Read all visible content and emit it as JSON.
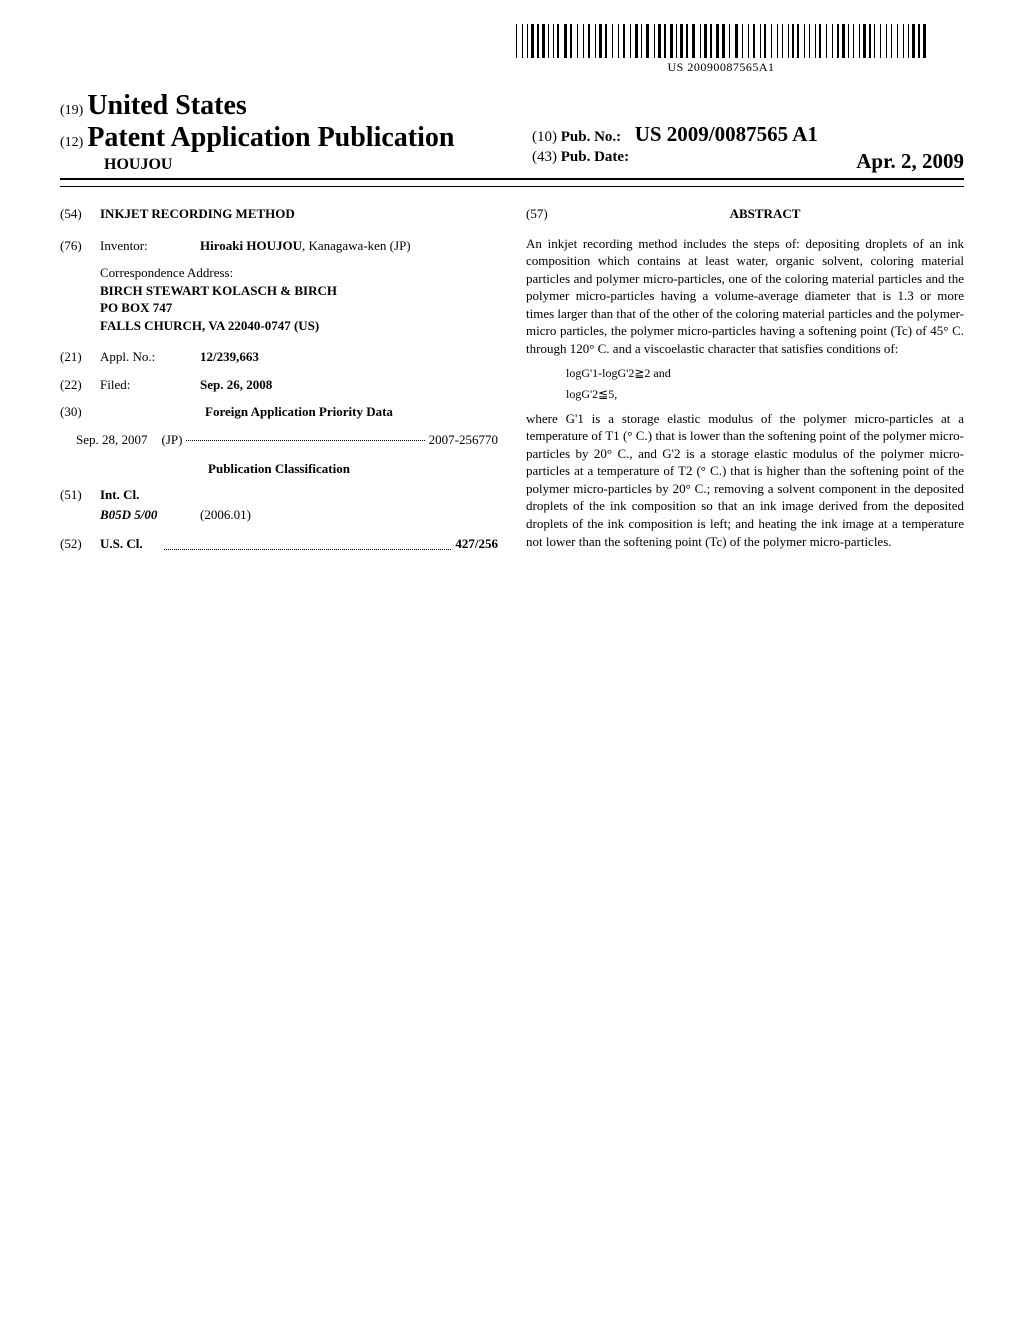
{
  "barcode_text": "US 20090087565A1",
  "header": {
    "code19": "(19)",
    "country": "United States",
    "code12": "(12)",
    "pap": "Patent Application Publication",
    "surname": "HOUJOU",
    "code10": "(10)",
    "pubno_label": "Pub. No.:",
    "pubno_value": "US 2009/0087565 A1",
    "code43": "(43)",
    "pubdate_label": "Pub. Date:",
    "pubdate_value": "Apr. 2, 2009"
  },
  "left": {
    "code54": "(54)",
    "title": "INKJET RECORDING METHOD",
    "code76": "(76)",
    "inventor_label": "Inventor:",
    "inventor_name": "Hiroaki HOUJOU",
    "inventor_loc": ", Kanagawa-ken (JP)",
    "corr_label": "Correspondence Address:",
    "corr_1": "BIRCH STEWART KOLASCH & BIRCH",
    "corr_2": "PO BOX 747",
    "corr_3": "FALLS CHURCH, VA 22040-0747 (US)",
    "code21": "(21)",
    "applno_label": "Appl. No.:",
    "applno_value": "12/239,663",
    "code22": "(22)",
    "filed_label": "Filed:",
    "filed_value": "Sep. 26, 2008",
    "code30": "(30)",
    "foreign_heading": "Foreign Application Priority Data",
    "foreign_date": "Sep. 28, 2007",
    "foreign_country": "(JP)",
    "foreign_num": "2007-256770",
    "pubclass_heading": "Publication Classification",
    "code51": "(51)",
    "intcl_label": "Int. Cl.",
    "intcl_code": "B05D 5/00",
    "intcl_year": "(2006.01)",
    "code52": "(52)",
    "uscl_label": "U.S. Cl.",
    "uscl_value": "427/256"
  },
  "right": {
    "code57": "(57)",
    "abstract_label": "ABSTRACT",
    "p1": "An inkjet recording method includes the steps of: depositing droplets of an ink composition which contains at least water, organic solvent, coloring material particles and polymer micro-particles, one of the coloring material particles and the polymer micro-particles having a volume-average diameter that is 1.3 or more times larger than that of the other of the coloring material particles and the polymer-micro particles, the polymer micro-particles having a softening point (Tc) of 45° C. through 120° C. and a viscoelastic character that satisfies conditions of:",
    "f1": "logG'1-logG'2≧2 and",
    "f2": "logG'2≦5,",
    "p2": "where G'1 is a storage elastic modulus of the polymer micro-particles at a temperature of T1 (° C.) that is lower than the softening point of the polymer micro-particles by 20° C., and G'2 is a storage elastic modulus of the polymer micro-particles at a temperature of T2 (° C.) that is higher than the softening point of the polymer micro-particles by 20° C.; removing a solvent component in the deposited droplets of the ink composition so that an ink image derived from the deposited droplets of the ink composition is left; and heating the ink image at a temperature not lower than the softening point (Tc) of the polymer micro-particles."
  },
  "barcode_widths": [
    1,
    3,
    1,
    2,
    1,
    1,
    3,
    1,
    2,
    1,
    3,
    1,
    1,
    2,
    1,
    1,
    2,
    3,
    3,
    1,
    2,
    3,
    1,
    3,
    1,
    2,
    2,
    3,
    1,
    1,
    3,
    1,
    2,
    3,
    1,
    3,
    1,
    2,
    2,
    3,
    1,
    2,
    3,
    1,
    1,
    2,
    3,
    3,
    1,
    1,
    3,
    1,
    2,
    2,
    3,
    1,
    1,
    1,
    3,
    1,
    2,
    2,
    3,
    3,
    1,
    1,
    3,
    1,
    2,
    2,
    3,
    1,
    3,
    2,
    1,
    3,
    3,
    2,
    1,
    3,
    1,
    2,
    2,
    3,
    1,
    1,
    2,
    3,
    1,
    3,
    1,
    2,
    1,
    3,
    1,
    1,
    2,
    1,
    2,
    3,
    1,
    2,
    1,
    3,
    1,
    1,
    2,
    3,
    1,
    3,
    1,
    2,
    2,
    1,
    3,
    1,
    1,
    2,
    1,
    3,
    1,
    1,
    3,
    1,
    2,
    1,
    1,
    3,
    1,
    3,
    1,
    2,
    1,
    3,
    1,
    3,
    1,
    2,
    1,
    1,
    3,
    1,
    2,
    1,
    3
  ]
}
